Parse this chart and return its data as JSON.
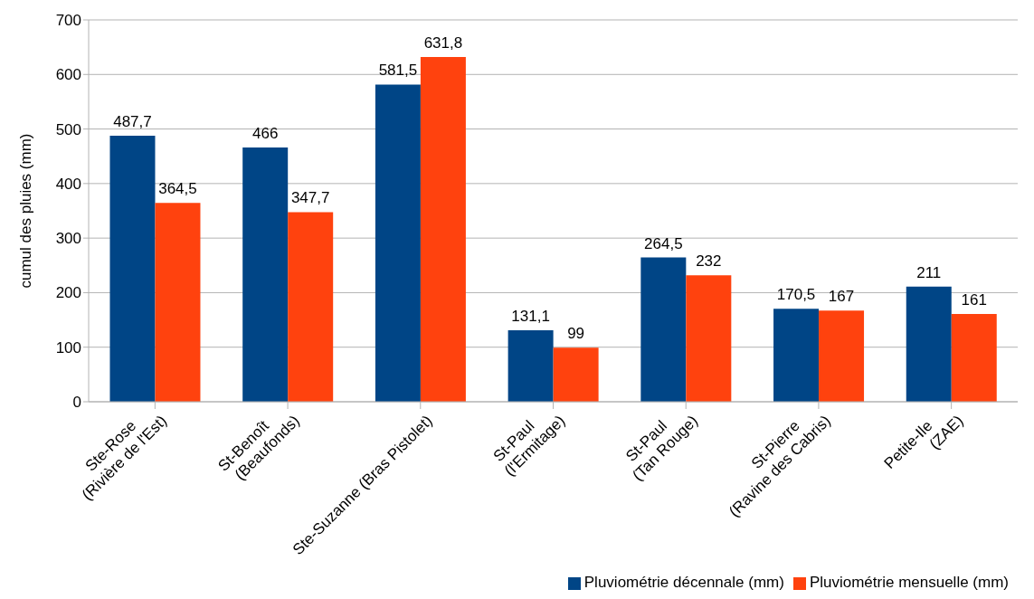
{
  "chart_data": {
    "type": "bar",
    "ylabel": "cumul des pluies (mm)",
    "categories": [
      "Ste-Rose\n(Rivière de l'Est)",
      "St-Benoît\n(Beaufonds)",
      "Ste-Suzanne (Bras Pistolet)",
      "St-Paul\n(l'Ermitage)",
      "St-Paul\n(Tan Rouge)",
      "St-Pierre\n(Ravine des Cabris)",
      "Petite-Ile\n(ZAE)"
    ],
    "series": [
      {
        "name": "Pluviométrie décennale (mm)",
        "color": "#004586",
        "values": [
          487.7,
          466,
          581.5,
          131.1,
          264.5,
          170.5,
          211
        ],
        "value_labels": [
          "487,7",
          "466",
          "581,5",
          "131,1",
          "264,5",
          "170,5",
          "211"
        ]
      },
      {
        "name": "Pluviométrie mensuelle (mm)",
        "color": "#ff420e",
        "values": [
          364.5,
          347.7,
          631.8,
          99,
          232,
          167,
          161
        ],
        "value_labels": [
          "364,5",
          "347,7",
          "631,8",
          "99",
          "232",
          "167",
          "161"
        ]
      }
    ],
    "ylim": [
      0,
      700
    ],
    "yticks": [
      0,
      100,
      200,
      300,
      400,
      500,
      600,
      700
    ],
    "grid": "y",
    "legend": "bottom right"
  }
}
